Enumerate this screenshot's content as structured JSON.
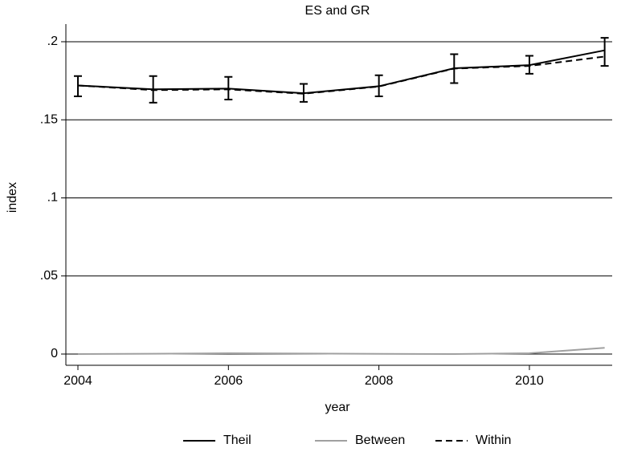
{
  "chart_data": {
    "type": "line",
    "title": "ES and GR",
    "x_label": "year",
    "y_label": "index",
    "x": [
      2004,
      2005,
      2006,
      2007,
      2008,
      2009,
      2010,
      2011
    ],
    "series": [
      {
        "name": "Theil",
        "color": "#000000",
        "dash": false,
        "values": [
          0.172,
          0.1695,
          0.17,
          0.167,
          0.1715,
          0.183,
          0.185,
          0.1945
        ],
        "ci_low": [
          0.165,
          0.161,
          0.163,
          0.1615,
          0.165,
          0.1735,
          0.1795,
          0.1845
        ],
        "ci_high": [
          0.178,
          0.178,
          0.1775,
          0.173,
          0.1785,
          0.192,
          0.191,
          0.2025
        ]
      },
      {
        "name": "Between",
        "color": "#a0a0a0",
        "dash": false,
        "values": [
          0,
          0.0002,
          0.0005,
          0.0003,
          0.0001,
          0,
          0.0005,
          0.004
        ]
      },
      {
        "name": "Within",
        "color": "#000000",
        "dash": true,
        "values": [
          0.172,
          0.169,
          0.1695,
          0.1667,
          0.1713,
          0.1828,
          0.1845,
          0.1905
        ]
      }
    ],
    "xlim": [
      2003.84,
      2011.1
    ],
    "xticks": [
      2004,
      2006,
      2008,
      2010
    ],
    "ylim": [
      -0.0072,
      0.2113
    ],
    "yticks": [
      0,
      {
        "value": 0.05,
        "label": ".05"
      },
      {
        "value": 0.1,
        "label": ".1"
      },
      {
        "value": 0.15,
        "label": ".15"
      },
      {
        "value": 0.2,
        "label": ".2"
      }
    ],
    "grid": true
  }
}
